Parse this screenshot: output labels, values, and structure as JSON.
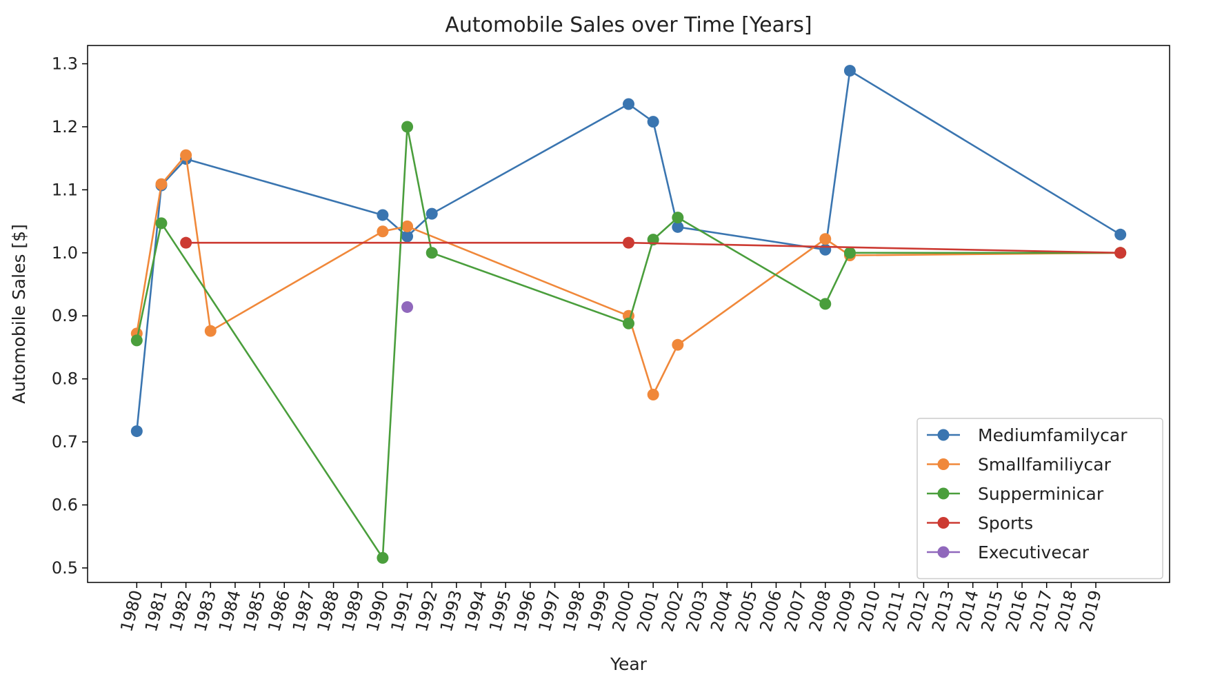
{
  "chart_data": {
    "type": "line",
    "title": "Automobile Sales over Time [Years]",
    "xlabel": "Year",
    "ylabel": "Automobile Sales [$]",
    "x_ticks": [
      1980,
      1981,
      1982,
      1983,
      1984,
      1985,
      1986,
      1987,
      1988,
      1989,
      1990,
      1991,
      1992,
      1993,
      1994,
      1995,
      1996,
      1997,
      1998,
      1999,
      2000,
      2001,
      2002,
      2003,
      2004,
      2005,
      2006,
      2007,
      2008,
      2009,
      2010,
      2011,
      2012,
      2013,
      2014,
      2015,
      2016,
      2017,
      2018,
      2019
    ],
    "y_ticks": [
      0.5,
      0.6,
      0.7,
      0.8,
      0.9,
      1.0,
      1.1,
      1.2,
      1.3
    ],
    "y_tick_labels": [
      "0.5",
      "0.6",
      "0.7",
      "0.8",
      "0.9",
      "1.0",
      "1.1",
      "1.2",
      "1.3"
    ],
    "xlim": [
      1978,
      2022
    ],
    "ylim": [
      0.477,
      1.329
    ],
    "grid": false,
    "legend_position": "lower-right",
    "series": [
      {
        "name": "Mediumfamilycar",
        "color": "#3a75b0",
        "points": [
          [
            1980,
            0.717
          ],
          [
            1981,
            1.107
          ],
          [
            1982,
            1.149
          ],
          [
            1990,
            1.06
          ],
          [
            1991,
            1.026
          ],
          [
            1992,
            1.062
          ],
          [
            2000,
            1.236
          ],
          [
            2001,
            1.208
          ],
          [
            2002,
            1.041
          ],
          [
            2008,
            1.005
          ],
          [
            2009,
            1.289
          ],
          [
            2020,
            1.029
          ]
        ]
      },
      {
        "name": "Smallfamiliycar",
        "color": "#f0883a",
        "points": [
          [
            1980,
            0.872
          ],
          [
            1981,
            1.109
          ],
          [
            1982,
            1.155
          ],
          [
            1983,
            0.876
          ],
          [
            1990,
            1.034
          ],
          [
            1991,
            1.042
          ],
          [
            2000,
            0.9
          ],
          [
            2001,
            0.775
          ],
          [
            2002,
            0.854
          ],
          [
            2008,
            1.022
          ],
          [
            2009,
            0.996
          ],
          [
            2020,
            1.0
          ]
        ]
      },
      {
        "name": "Supperminicar",
        "color": "#4a9e3c",
        "points": [
          [
            1980,
            0.861
          ],
          [
            1981,
            1.047
          ],
          [
            1990,
            0.516
          ],
          [
            1991,
            1.2
          ],
          [
            1992,
            1.0
          ],
          [
            2000,
            0.888
          ],
          [
            2001,
            1.021
          ],
          [
            2002,
            1.056
          ],
          [
            2008,
            0.919
          ],
          [
            2009,
            1.0
          ],
          [
            2020,
            1.0
          ]
        ]
      },
      {
        "name": "Sports",
        "color": "#cc3a32",
        "points": [
          [
            1982,
            1.016
          ],
          [
            2000,
            1.016
          ],
          [
            2020,
            1.0
          ]
        ]
      },
      {
        "name": "Executivecar",
        "color": "#9068bc",
        "points": [
          [
            1991,
            0.914
          ]
        ]
      }
    ]
  }
}
